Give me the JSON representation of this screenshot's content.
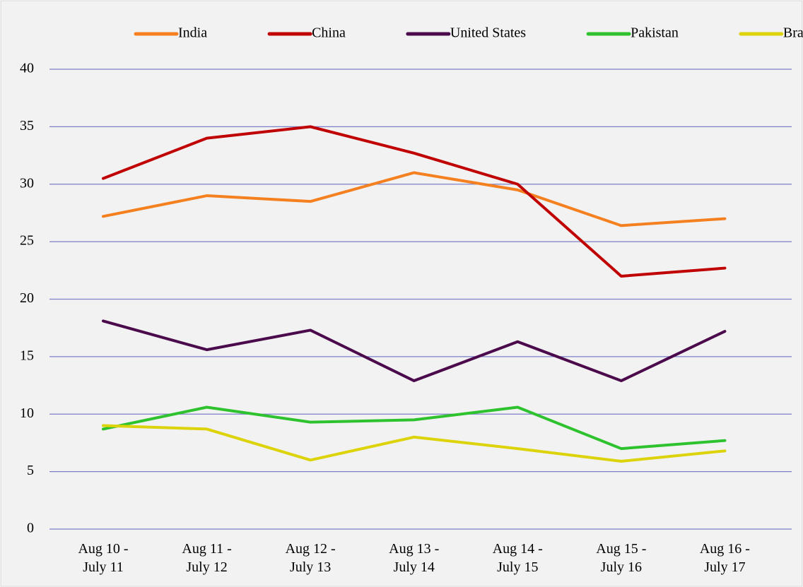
{
  "chart_data": {
    "type": "line",
    "categories": [
      "Aug 10 -\nJuly 11",
      "Aug 11 -\nJuly 12",
      "Aug 12 -\nJuly 13",
      "Aug 13 -\nJuly 14",
      "Aug 14 -\nJuly 15",
      "Aug 15 -\nJuly 16",
      "Aug 16 -\nJuly 17"
    ],
    "series": [
      {
        "name": "India",
        "color": "#f5801f",
        "values": [
          27.2,
          29,
          28.5,
          31,
          29.5,
          26.4,
          27
        ]
      },
      {
        "name": "China",
        "color": "#c00000",
        "values": [
          30.5,
          34,
          35,
          32.7,
          30,
          22,
          22.7
        ]
      },
      {
        "name": "United States",
        "color": "#4b0a4b",
        "values": [
          18.1,
          15.6,
          17.3,
          12.9,
          16.3,
          12.9,
          17.2
        ]
      },
      {
        "name": "Pakistan",
        "color": "#2fc22f",
        "values": [
          8.7,
          10.6,
          9.3,
          9.5,
          10.6,
          7,
          7.7
        ]
      },
      {
        "name": "Brazil",
        "color": "#dcd30a",
        "values": [
          9,
          8.7,
          6,
          8,
          7,
          5.9,
          6.8
        ]
      }
    ],
    "ylim": [
      0,
      40
    ],
    "yticks": [
      0,
      5,
      10,
      15,
      20,
      25,
      30,
      35,
      40
    ],
    "grid": true,
    "legend": "top"
  }
}
